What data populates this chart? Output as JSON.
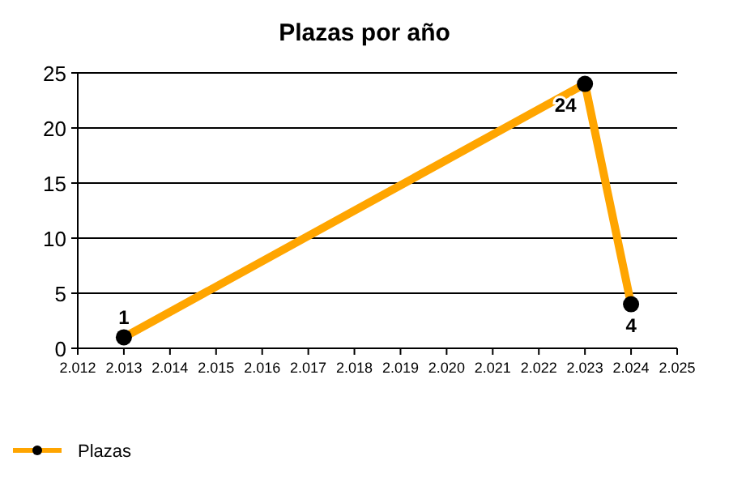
{
  "chart_data": {
    "type": "line",
    "title": "Plazas por año",
    "x": [
      2013,
      2023,
      2024
    ],
    "series": [
      {
        "name": "Plazas",
        "color": "#ffa500",
        "values": [
          1,
          24,
          4
        ]
      }
    ],
    "xlim": [
      2012,
      2025
    ],
    "xticks": [
      {
        "value": 2012,
        "label": "2.012"
      },
      {
        "value": 2013,
        "label": "2.013"
      },
      {
        "value": 2014,
        "label": "2.014"
      },
      {
        "value": 2015,
        "label": "2.015"
      },
      {
        "value": 2016,
        "label": "2.016"
      },
      {
        "value": 2017,
        "label": "2.017"
      },
      {
        "value": 2018,
        "label": "2.018"
      },
      {
        "value": 2019,
        "label": "2.019"
      },
      {
        "value": 2020,
        "label": "2.020"
      },
      {
        "value": 2021,
        "label": "2.021"
      },
      {
        "value": 2022,
        "label": "2.022"
      },
      {
        "value": 2023,
        "label": "2.023"
      },
      {
        "value": 2024,
        "label": "2.024"
      },
      {
        "value": 2025,
        "label": "2.025"
      }
    ],
    "ylim": [
      0,
      25
    ],
    "yticks": [
      0,
      5,
      10,
      15,
      20,
      25
    ],
    "grid": "y",
    "data_labels": true,
    "marker": "circle",
    "line_style": "solid",
    "legend": "bottom left"
  }
}
